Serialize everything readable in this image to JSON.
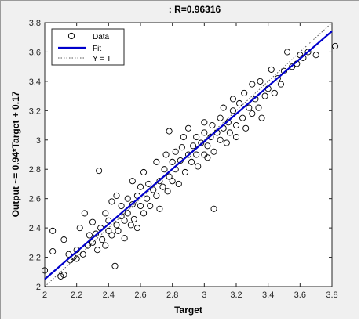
{
  "chart_data": {
    "type": "scatter",
    "title": ": R=0.96316",
    "xlabel": "Target",
    "ylabel": "Output ~= 0.94*Target + 0.17",
    "xlim": [
      2,
      3.8
    ],
    "ylim": [
      2,
      3.8
    ],
    "xticks": [
      "2",
      "2.2",
      "2.4",
      "2.6",
      "2.8",
      "3",
      "3.2",
      "3.4",
      "3.6",
      "3.8"
    ],
    "yticks": [
      "2",
      "2.2",
      "2.4",
      "2.6",
      "2.8",
      "3",
      "3.2",
      "3.4",
      "3.6",
      "3.8"
    ],
    "grid": false,
    "legend_position": "top-left",
    "legend": [
      "Data",
      "Fit",
      "Y = T"
    ],
    "fit": {
      "slope": 0.94,
      "intercept": 0.17,
      "color": "#0000cc"
    },
    "identity_color": "#555555",
    "marker_color": "#000000",
    "series": [
      {
        "name": "Data",
        "points": [
          [
            2.0,
            2.11
          ],
          [
            2.05,
            2.24
          ],
          [
            2.05,
            2.38
          ],
          [
            2.1,
            2.07
          ],
          [
            2.12,
            2.08
          ],
          [
            2.12,
            2.32
          ],
          [
            2.15,
            2.22
          ],
          [
            2.16,
            2.18
          ],
          [
            2.18,
            2.2
          ],
          [
            2.2,
            2.19
          ],
          [
            2.2,
            2.25
          ],
          [
            2.22,
            2.4
          ],
          [
            2.24,
            2.22
          ],
          [
            2.25,
            2.5
          ],
          [
            2.27,
            2.28
          ],
          [
            2.28,
            2.35
          ],
          [
            2.3,
            2.3
          ],
          [
            2.3,
            2.44
          ],
          [
            2.32,
            2.36
          ],
          [
            2.33,
            2.25
          ],
          [
            2.34,
            2.79
          ],
          [
            2.35,
            2.4
          ],
          [
            2.36,
            2.32
          ],
          [
            2.38,
            2.5
          ],
          [
            2.38,
            2.28
          ],
          [
            2.4,
            2.38
          ],
          [
            2.4,
            2.45
          ],
          [
            2.42,
            2.58
          ],
          [
            2.42,
            2.35
          ],
          [
            2.44,
            2.14
          ],
          [
            2.45,
            2.42
          ],
          [
            2.45,
            2.62
          ],
          [
            2.46,
            2.38
          ],
          [
            2.48,
            2.48
          ],
          [
            2.48,
            2.55
          ],
          [
            2.5,
            2.45
          ],
          [
            2.5,
            2.33
          ],
          [
            2.52,
            2.6
          ],
          [
            2.52,
            2.5
          ],
          [
            2.54,
            2.42
          ],
          [
            2.55,
            2.56
          ],
          [
            2.55,
            2.72
          ],
          [
            2.56,
            2.46
          ],
          [
            2.58,
            2.4
          ],
          [
            2.58,
            2.62
          ],
          [
            2.6,
            2.55
          ],
          [
            2.6,
            2.68
          ],
          [
            2.62,
            2.5
          ],
          [
            2.62,
            2.78
          ],
          [
            2.64,
            2.6
          ],
          [
            2.65,
            2.7
          ],
          [
            2.66,
            2.55
          ],
          [
            2.68,
            2.66
          ],
          [
            2.7,
            2.62
          ],
          [
            2.7,
            2.85
          ],
          [
            2.72,
            2.72
          ],
          [
            2.72,
            2.53
          ],
          [
            2.74,
            2.68
          ],
          [
            2.75,
            2.8
          ],
          [
            2.76,
            2.9
          ],
          [
            2.77,
            2.65
          ],
          [
            2.78,
            2.75
          ],
          [
            2.78,
            3.06
          ],
          [
            2.8,
            2.72
          ],
          [
            2.8,
            2.85
          ],
          [
            2.82,
            2.8
          ],
          [
            2.82,
            2.92
          ],
          [
            2.84,
            2.7
          ],
          [
            2.85,
            2.86
          ],
          [
            2.86,
            2.95
          ],
          [
            2.87,
            3.02
          ],
          [
            2.88,
            2.78
          ],
          [
            2.9,
            2.9
          ],
          [
            2.9,
            3.08
          ],
          [
            2.92,
            2.85
          ],
          [
            2.93,
            2.96
          ],
          [
            2.95,
            2.9
          ],
          [
            2.95,
            3.02
          ],
          [
            2.96,
            2.82
          ],
          [
            2.98,
            2.98
          ],
          [
            3.0,
            2.9
          ],
          [
            3.0,
            3.05
          ],
          [
            3.0,
            3.12
          ],
          [
            3.02,
            2.96
          ],
          [
            3.02,
            2.88
          ],
          [
            3.04,
            3.02
          ],
          [
            3.05,
            3.1
          ],
          [
            3.06,
            2.92
          ],
          [
            3.06,
            2.53
          ],
          [
            3.08,
            3.05
          ],
          [
            3.1,
            3.0
          ],
          [
            3.1,
            3.15
          ],
          [
            3.12,
            3.08
          ],
          [
            3.12,
            3.22
          ],
          [
            3.14,
            2.98
          ],
          [
            3.15,
            3.12
          ],
          [
            3.16,
            3.05
          ],
          [
            3.18,
            3.2
          ],
          [
            3.18,
            3.28
          ],
          [
            3.2,
            3.1
          ],
          [
            3.2,
            3.02
          ],
          [
            3.22,
            3.25
          ],
          [
            3.24,
            3.15
          ],
          [
            3.25,
            3.32
          ],
          [
            3.26,
            3.08
          ],
          [
            3.28,
            3.22
          ],
          [
            3.3,
            3.18
          ],
          [
            3.3,
            3.38
          ],
          [
            3.32,
            3.28
          ],
          [
            3.34,
            3.22
          ],
          [
            3.35,
            3.4
          ],
          [
            3.36,
            3.15
          ],
          [
            3.38,
            3.3
          ],
          [
            3.4,
            3.35
          ],
          [
            3.42,
            3.48
          ],
          [
            3.44,
            3.32
          ],
          [
            3.46,
            3.42
          ],
          [
            3.48,
            3.38
          ],
          [
            3.5,
            3.47
          ],
          [
            3.52,
            3.6
          ],
          [
            3.55,
            3.5
          ],
          [
            3.58,
            3.52
          ],
          [
            3.6,
            3.58
          ],
          [
            3.62,
            3.56
          ],
          [
            3.65,
            3.6
          ],
          [
            3.7,
            3.58
          ],
          [
            3.82,
            3.64
          ]
        ]
      }
    ]
  }
}
